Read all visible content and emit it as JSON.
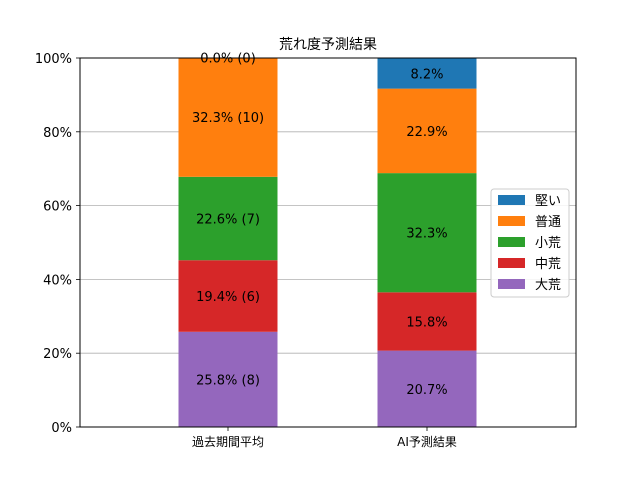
{
  "chart_data": {
    "type": "bar",
    "stacked": true,
    "title": "荒れ度予測結果",
    "xlabel": "",
    "ylabel": "",
    "ylim": [
      0,
      100
    ],
    "y_tick_labels": [
      "0%",
      "20%",
      "40%",
      "60%",
      "80%",
      "100%"
    ],
    "y_ticks": [
      0,
      20,
      40,
      60,
      80,
      100
    ],
    "grid": "y",
    "legend_position": "center-right",
    "categories": [
      "過去期間平均",
      "AI予測結果"
    ],
    "series": [
      {
        "name": "大荒",
        "color": "#9467bd",
        "values": [
          25.8,
          20.7
        ],
        "labels": [
          "25.8% (8)",
          "20.7%"
        ]
      },
      {
        "name": "中荒",
        "color": "#d62728",
        "values": [
          19.4,
          15.8
        ],
        "labels": [
          "19.4% (6)",
          "15.8%"
        ]
      },
      {
        "name": "小荒",
        "color": "#2ca02c",
        "values": [
          22.6,
          32.3
        ],
        "labels": [
          "22.6% (7)",
          "32.3%"
        ]
      },
      {
        "name": "普通",
        "color": "#ff7f0e",
        "values": [
          32.3,
          22.9
        ],
        "labels": [
          "32.3% (10)",
          "22.9%"
        ]
      },
      {
        "name": "堅い",
        "color": "#1f77b4",
        "values": [
          0.0,
          8.2
        ],
        "labels": [
          "0.0% (0)",
          "8.2%"
        ]
      }
    ],
    "legend_order": [
      "堅い",
      "普通",
      "小荒",
      "中荒",
      "大荒"
    ]
  }
}
